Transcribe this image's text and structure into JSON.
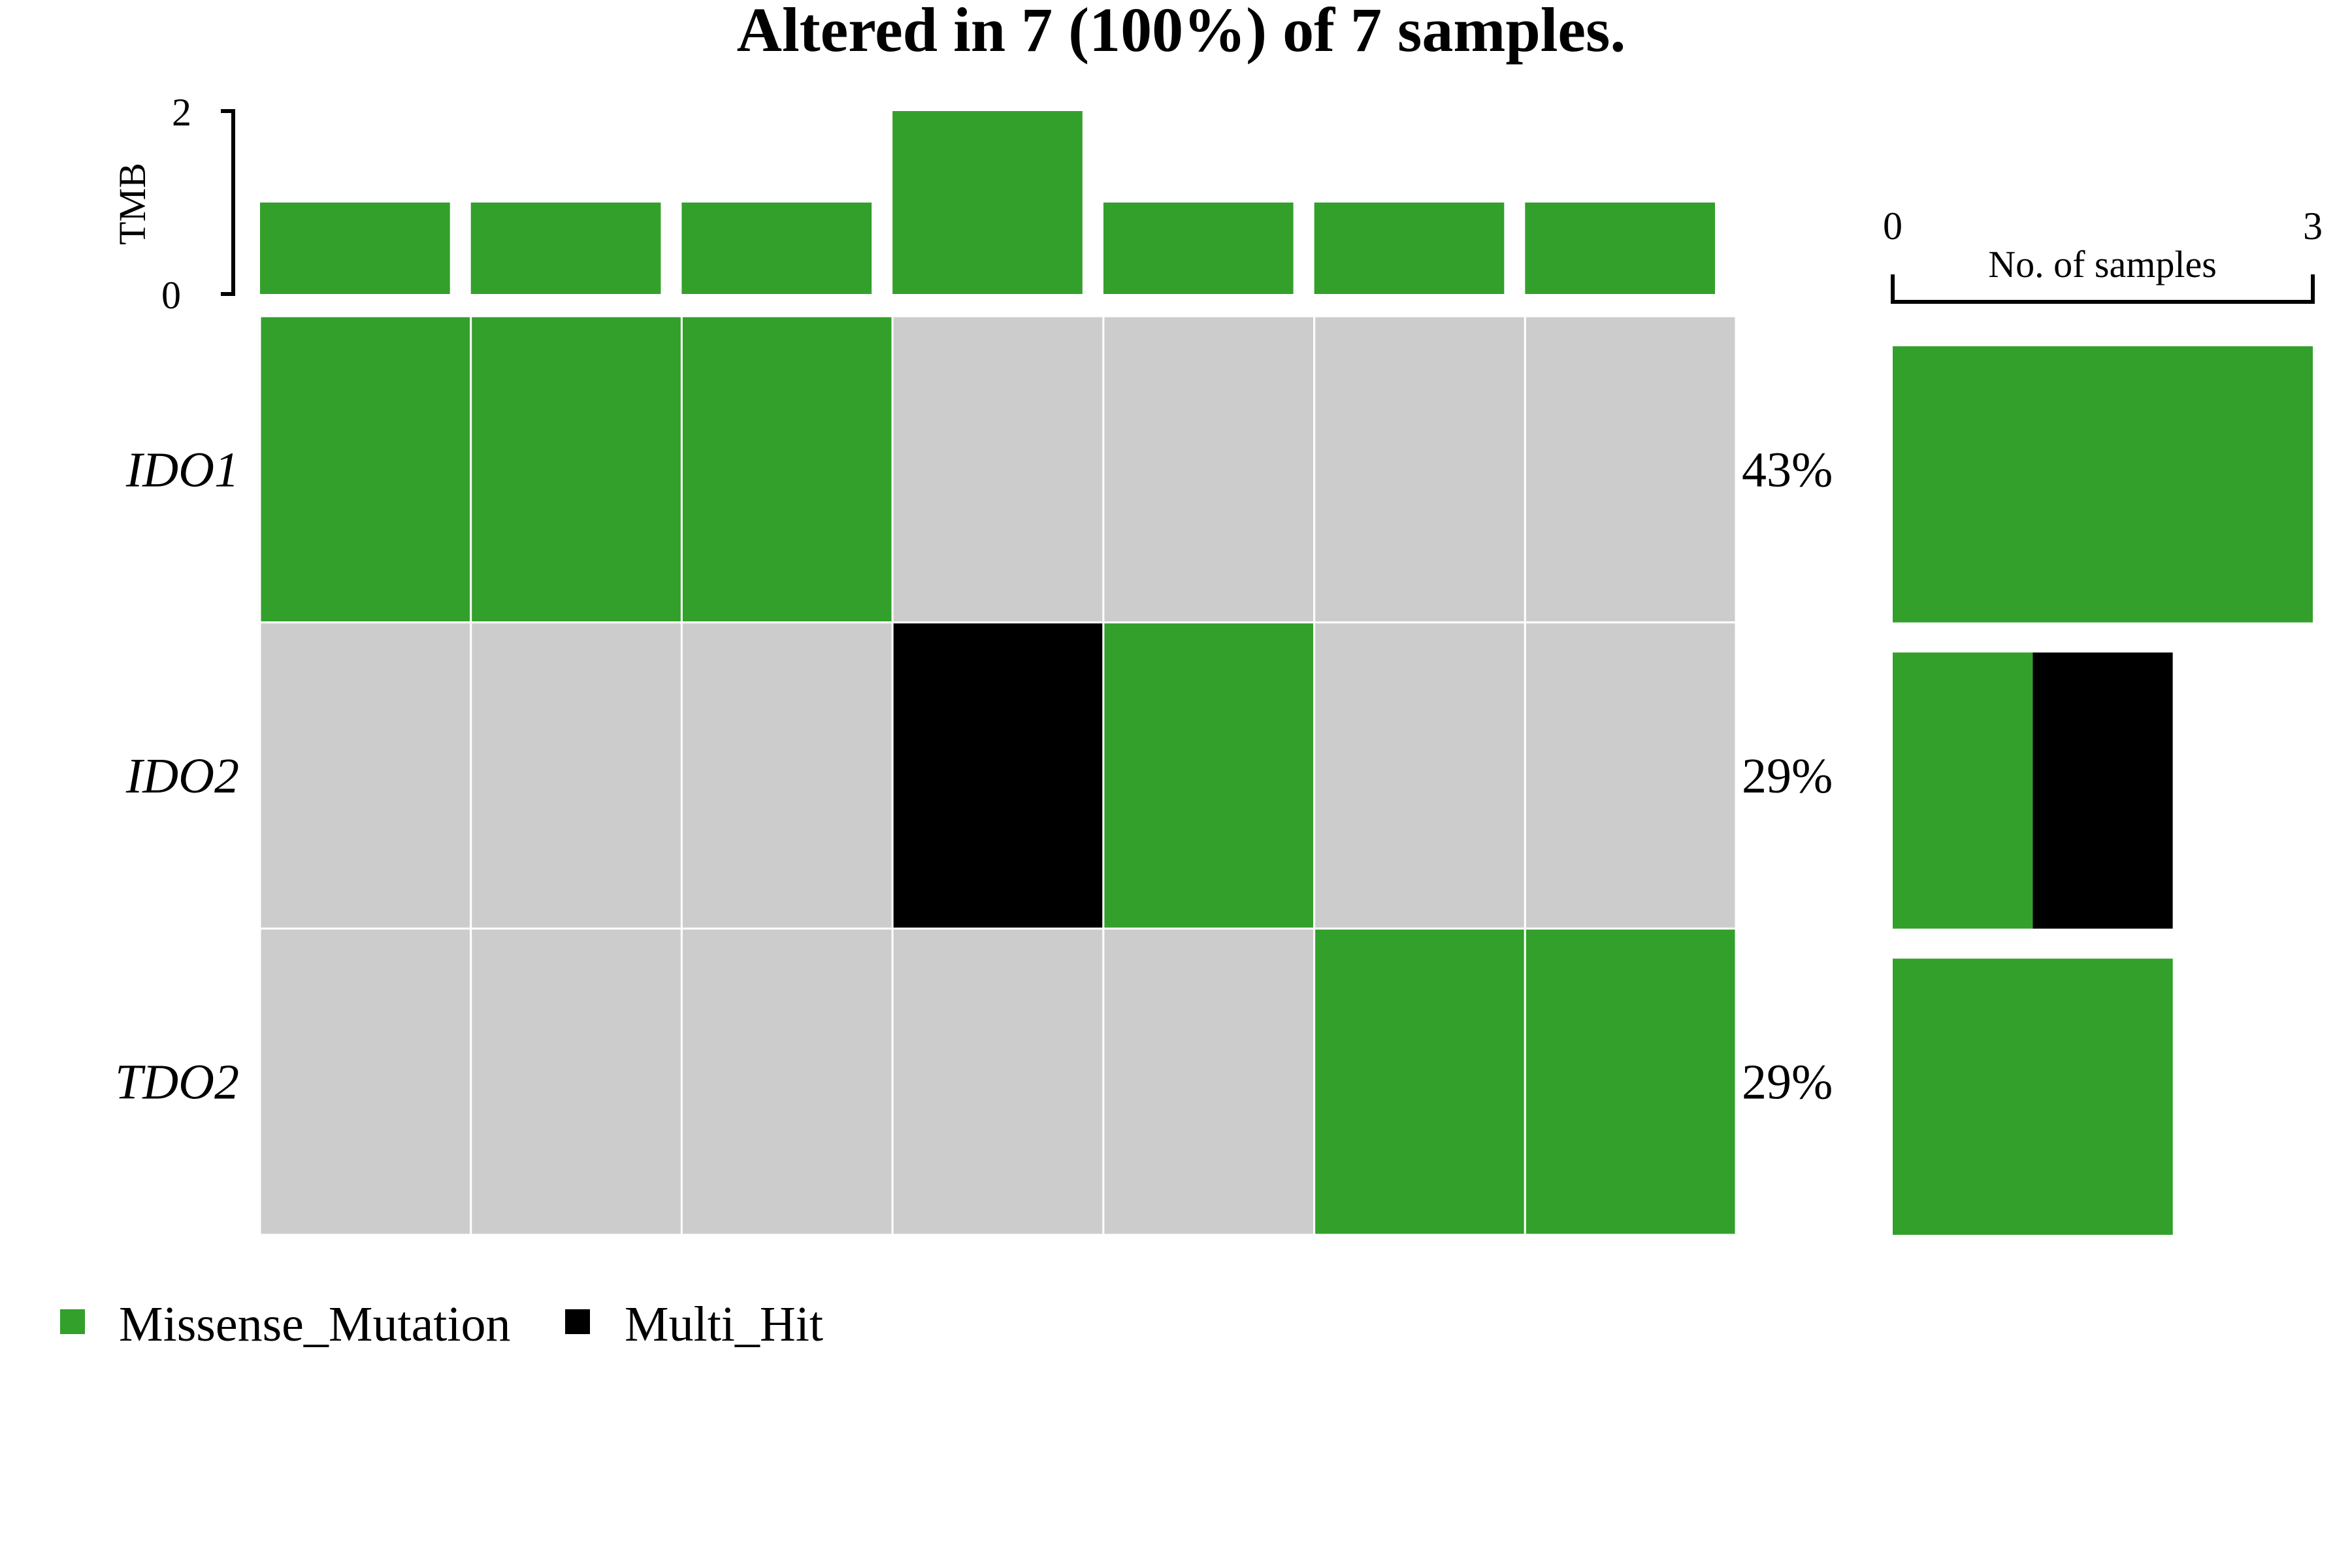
{
  "chart_data": {
    "type": "heatmap",
    "title": "Altered in 7 (100%) of 7 samples.",
    "colors": {
      "Missense_Mutation": "#33a02c",
      "Multi_Hit": "#000000",
      "none": "#cccccc"
    },
    "samples": 7,
    "tmb": {
      "label": "TMB",
      "ylim": [
        0,
        2
      ],
      "ticks": [
        "0",
        "2"
      ],
      "values": [
        1,
        1,
        1,
        2,
        1,
        1,
        1
      ]
    },
    "genes": [
      {
        "name": "IDO1",
        "percent": "43%",
        "cells": [
          "Missense_Mutation",
          "Missense_Mutation",
          "Missense_Mutation",
          "none",
          "none",
          "none",
          "none"
        ],
        "counts": {
          "Missense_Mutation": 3,
          "Multi_Hit": 0
        }
      },
      {
        "name": "IDO2",
        "percent": "29%",
        "cells": [
          "none",
          "none",
          "none",
          "Multi_Hit",
          "Missense_Mutation",
          "none",
          "none"
        ],
        "counts": {
          "Missense_Mutation": 1,
          "Multi_Hit": 1
        }
      },
      {
        "name": "TDO2",
        "percent": "29%",
        "cells": [
          "none",
          "none",
          "none",
          "none",
          "none",
          "Missense_Mutation",
          "Missense_Mutation"
        ],
        "counts": {
          "Missense_Mutation": 2,
          "Multi_Hit": 0
        }
      }
    ],
    "side_axis": {
      "label": "No. of samples",
      "xlim": [
        0,
        3
      ],
      "ticks": [
        "0",
        "3"
      ]
    },
    "legend": {
      "placement": "bottom-left",
      "items": [
        {
          "name": "Missense_Mutation",
          "color": "#33a02c"
        },
        {
          "name": "Multi_Hit",
          "color": "#000000"
        }
      ]
    }
  }
}
